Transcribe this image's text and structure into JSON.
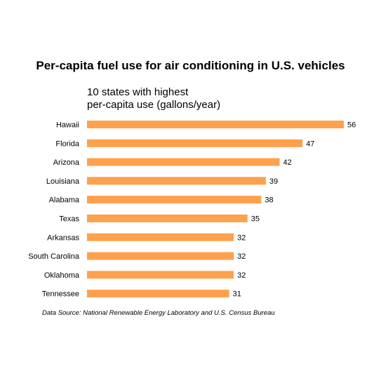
{
  "chart_data": {
    "type": "bar",
    "orientation": "horizontal",
    "title": "Per-capita fuel use for air conditioning in U.S. vehicles",
    "subtitle_lines": [
      "10 states with highest",
      "per-capita use (gallons/year)"
    ],
    "source": "Data Source: National Renewable Energy Laboratory and U.S. Census Bureau",
    "categories": [
      "Hawaii",
      "Florida",
      "Arizona",
      "Louisiana",
      "Alabama",
      "Texas",
      "Arkansas",
      "South Carolina",
      "Oklahoma",
      "Tennessee"
    ],
    "values": [
      56,
      47,
      42,
      39,
      38,
      35,
      32,
      32,
      32,
      31
    ],
    "xlim": [
      0,
      56
    ],
    "grid": false,
    "bar_color": "#FFA04D"
  }
}
